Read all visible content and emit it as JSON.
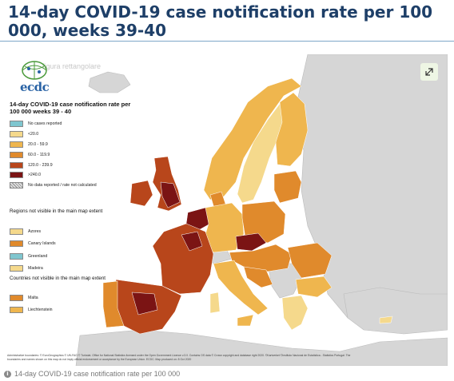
{
  "page": {
    "title": "14-day COVID-19 case notification rate per 100 000, weeks 39-40",
    "caption": "14-day COVID-19 case notification rate per 100 000",
    "ghost_caption": "figura rettangolare"
  },
  "logo": {
    "text": "ecdc"
  },
  "legend": {
    "title": "14-day COVID-19 case notification rate per 100 000 weeks 39 - 40",
    "items": [
      {
        "label": "No cases reported",
        "color": "#7fc6cf"
      },
      {
        "label": "<20.0",
        "color": "#f5d98c"
      },
      {
        "label": "20.0 - 59.9",
        "color": "#efb64e"
      },
      {
        "label": "60.0 - 119.9",
        "color": "#e08a2c"
      },
      {
        "label": "120.0 - 239.9",
        "color": "#b8461b"
      },
      {
        "label": ">240.0",
        "color": "#7b1414"
      },
      {
        "label": "No data reported / rate not calculated",
        "color": "hatch"
      }
    ],
    "regions_heading": "Regions not visible in the main map extent",
    "regions": [
      {
        "label": "Azores",
        "color": "#f5d98c"
      },
      {
        "label": "Canary Islands",
        "color": "#e08a2c"
      },
      {
        "label": "Greenland",
        "color": "#7fc6cf"
      },
      {
        "label": "Madeira",
        "color": "#f5d98c"
      }
    ],
    "countries_heading": "Countries not visible in the main map extent",
    "countries": [
      {
        "label": "Malta",
        "color": "#e08a2c"
      },
      {
        "label": "Liechtenstein",
        "color": "#efb64e"
      }
    ]
  },
  "attribution": "Administrative boundaries: © EuroGeographics © UN-FAO © Turkstat. Office for National Statistics licensed under the Open Government Licence v.3.0. Contains OS data © Crown copyright and database right 2020. ©Kartverket ©Instituto Nacional de Estatística - Statistics Portugal. The boundaries and names shown on this map do not imply official endorsement or acceptance by the European Union. ECDC. Map produced on: 8 Oct 2020"
}
